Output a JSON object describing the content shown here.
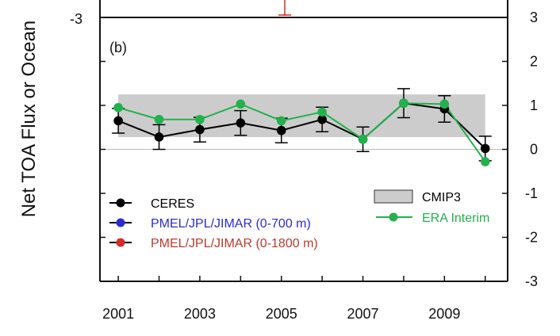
{
  "chart_data": {
    "type": "line",
    "panel_label": "(b)",
    "ylabel": "Net TOA Flux or Ocean",
    "x": [
      2001,
      2002,
      2003,
      2004,
      2005,
      2006,
      2007,
      2008,
      2009,
      2010
    ],
    "xticks": [
      "2001",
      "2003",
      "2005",
      "2007",
      "2009"
    ],
    "ylim": [
      -3,
      3
    ],
    "yticks_left": [
      "-3"
    ],
    "yticks_right": [
      "3",
      "2",
      "1",
      "0",
      "-1",
      "-2",
      "-3"
    ],
    "grid": false,
    "legend_placement": "bottom-left / bottom-right",
    "series": [
      {
        "name": "CERES",
        "color": "#000000",
        "values": [
          0.65,
          0.28,
          0.45,
          0.6,
          0.43,
          0.68,
          0.23,
          1.05,
          0.92,
          0.02
        ],
        "error": [
          0.28,
          0.28,
          0.28,
          0.28,
          0.28,
          0.28,
          0.28,
          0.33,
          0.3,
          0.28
        ]
      },
      {
        "name": "ERA Interim",
        "color": "#22b14c",
        "values": [
          0.95,
          0.68,
          0.68,
          1.03,
          0.65,
          0.85,
          0.23,
          1.05,
          1.03,
          -0.28
        ]
      }
    ],
    "band": {
      "name": "CMIP3",
      "range": [
        0.28,
        1.25
      ],
      "color": "#cccccc"
    },
    "legend_only_series": [
      {
        "name": "PMEL/JPL/JIMAR (0-700 m)",
        "color": "#2b2bd6"
      },
      {
        "name": "PMEL/JPL/JIMAR (0-1800 m)",
        "color": "#d62b2b"
      }
    ],
    "legend_text_colors": {
      "CERES": "#000000",
      "PMEL/JPL/JIMAR (0-700 m)": "#2b2bd6",
      "PMEL/JPL/JIMAR (0-1800 m)": "#c0392b",
      "CMIP3": "#000000",
      "ERA Interim": "#22b14c"
    }
  }
}
